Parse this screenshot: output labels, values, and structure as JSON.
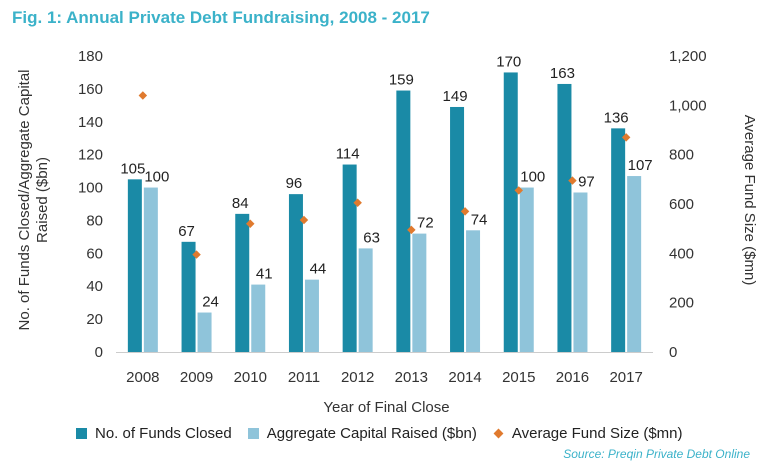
{
  "chart_data": {
    "type": "bar",
    "title": "Fig. 1: Annual Private Debt Fundraising, 2008 - 2017",
    "categories": [
      "2008",
      "2009",
      "2010",
      "2011",
      "2012",
      "2013",
      "2014",
      "2015",
      "2016",
      "2017"
    ],
    "series": [
      {
        "name": "No. of Funds Closed",
        "axis": "left",
        "kind": "bar",
        "color": "#1a8aa6",
        "values": [
          105,
          67,
          84,
          96,
          114,
          159,
          149,
          170,
          163,
          136
        ]
      },
      {
        "name": "Aggregate Capital Raised ($bn)",
        "axis": "left",
        "kind": "bar",
        "color": "#8fc4da",
        "values": [
          100,
          24,
          41,
          44,
          63,
          72,
          74,
          100,
          97,
          107
        ]
      },
      {
        "name": "Average Fund Size ($mn)",
        "axis": "right",
        "kind": "scatter",
        "color": "#e07a2e",
        "values": [
          1040,
          395,
          520,
          535,
          605,
          495,
          570,
          655,
          695,
          870
        ]
      }
    ],
    "xlabel": "Year of Final Close",
    "ylabel": "No. of Funds Closed/Aggregate Capital Raised ($bn)",
    "ylabel_lines": [
      "No. of Funds Closed/Aggregate Capital",
      "Raised ($bn)"
    ],
    "y2label": "Average Fund Size ($mn)",
    "ylim": [
      0,
      180
    ],
    "y2lim": [
      0,
      1200
    ],
    "yticks": [
      "0",
      "20",
      "40",
      "60",
      "80",
      "100",
      "120",
      "140",
      "160",
      "180"
    ],
    "y2ticks": [
      "0",
      "200",
      "400",
      "600",
      "800",
      "1,000",
      "1,200"
    ],
    "legend_position": "bottom",
    "source": "Source: Preqin Private Debt Online"
  }
}
